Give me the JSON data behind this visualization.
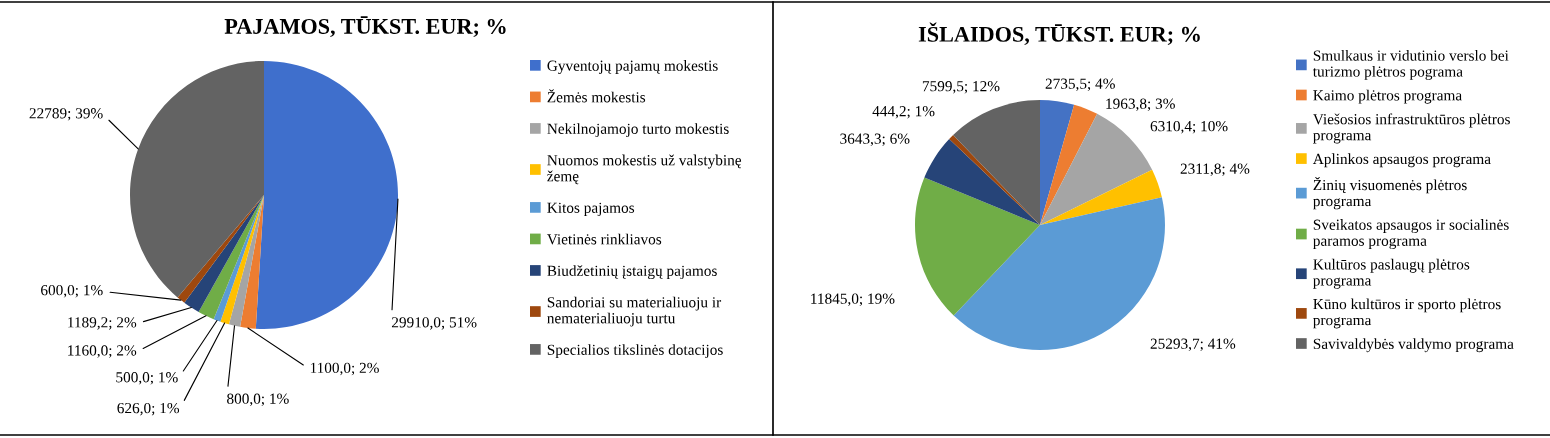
{
  "chart_data": [
    {
      "type": "pie",
      "title": "PAJAMOS, TŪKST. EUR; %",
      "categories": [
        "Gyventojų pajamų mokestis",
        "Žemės mokestis",
        "Nekilnojamojo turto mokestis",
        "Nuomos mokestis už valstybinę žemę",
        "Kitos pajamos",
        "Vietinės rinkliavos",
        "Biudžetinių įstaigų pajamos",
        "Sandoriai su materialiuoju ir nematerialiuoju turtu",
        "Specialios tikslinės dotacijos"
      ],
      "values": [
        29910.0,
        1100.0,
        800.0,
        626.0,
        500.0,
        1160.0,
        1189.2,
        600.0,
        22789
      ],
      "colors": [
        "#3f6fcc",
        "#ed7d31",
        "#a5a5a5",
        "#ffc000",
        "#5b9bd5",
        "#70ad47",
        "#264478",
        "#9e480e",
        "#636363"
      ],
      "value_labels": [
        "29910,0; 51%",
        "1100,0; 2%",
        "800,0; 1%",
        "626,0; 1%",
        "500,0; 1%",
        "1160,0; 2%",
        "1189,2; 2%",
        "600,0; 1%",
        "22789; 39%"
      ],
      "legend": "right"
    },
    {
      "type": "pie",
      "title": "IŠLAIDOS, TŪKST. EUR; %",
      "categories": [
        "Smulkaus ir vidutinio verslo bei turizmo plėtros pograma",
        "Kaimo plėtros programa",
        "Viešosios infrastruktūros plėtros programa",
        "Aplinkos apsaugos programa",
        "Žinių visuomenės plėtros programa",
        "Sveikatos apsaugos ir socialinės paramos programa",
        "Kultūros paslaugų plėtros programa",
        "Kūno kultūros ir sporto plėtros programa",
        "Savivaldybės valdymo programa"
      ],
      "values": [
        2735.5,
        1963.8,
        6310.4,
        2311.8,
        25293.7,
        11845.0,
        3643.3,
        444.2,
        7599.5
      ],
      "colors": [
        "#4472c4",
        "#ed7d31",
        "#a5a5a5",
        "#ffc000",
        "#5b9bd5",
        "#70ad47",
        "#264478",
        "#9e480e",
        "#636363"
      ],
      "value_labels": [
        "2735,5; 4%",
        "1963,8; 3%",
        "6310,4; 10%",
        "2311,8; 4%",
        "25293,7; 41%",
        "11845,0; 19%",
        "3643,3; 6%",
        "444,2; 1%",
        "7599,5; 12%"
      ],
      "legend": "right"
    }
  ]
}
